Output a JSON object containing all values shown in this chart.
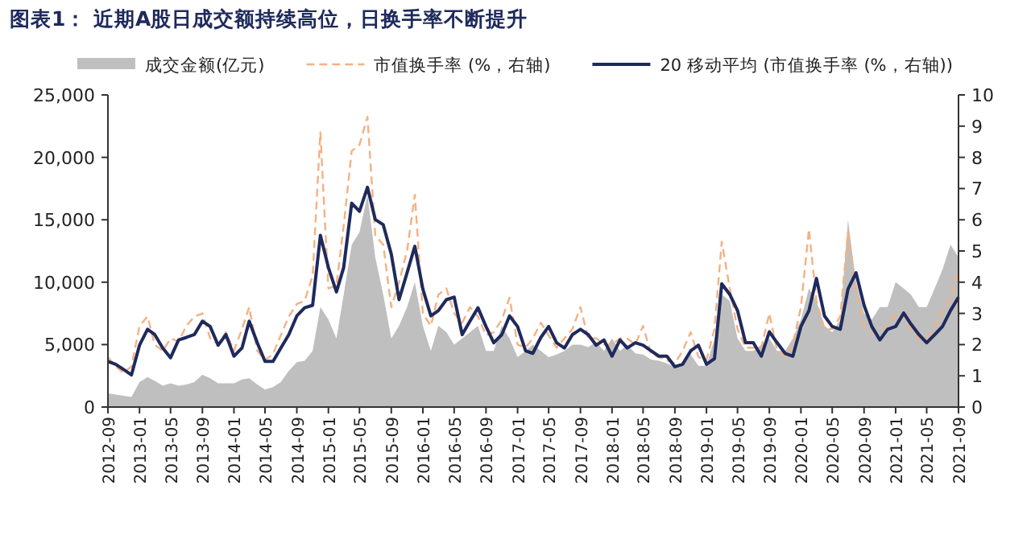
{
  "chart_data": {
    "type": "line",
    "title": "图表1：  近期A股日成交额持续高位，日换手率不断提升",
    "x": [
      "2012-09",
      "2012-10",
      "2012-11",
      "2012-12",
      "2013-01",
      "2013-02",
      "2013-03",
      "2013-04",
      "2013-05",
      "2013-06",
      "2013-07",
      "2013-08",
      "2013-09",
      "2013-10",
      "2013-11",
      "2013-12",
      "2014-01",
      "2014-02",
      "2014-03",
      "2014-04",
      "2014-05",
      "2014-06",
      "2014-07",
      "2014-08",
      "2014-09",
      "2014-10",
      "2014-11",
      "2014-12",
      "2015-01",
      "2015-02",
      "2015-03",
      "2015-04",
      "2015-05",
      "2015-06",
      "2015-07",
      "2015-08",
      "2015-09",
      "2015-10",
      "2015-11",
      "2015-12",
      "2016-01",
      "2016-02",
      "2016-03",
      "2016-04",
      "2016-05",
      "2016-06",
      "2016-07",
      "2016-08",
      "2016-09",
      "2016-10",
      "2016-11",
      "2016-12",
      "2017-01",
      "2017-02",
      "2017-03",
      "2017-04",
      "2017-05",
      "2017-06",
      "2017-07",
      "2017-08",
      "2017-09",
      "2017-10",
      "2017-11",
      "2017-12",
      "2018-01",
      "2018-02",
      "2018-03",
      "2018-04",
      "2018-05",
      "2018-06",
      "2018-07",
      "2018-08",
      "2018-09",
      "2018-10",
      "2018-11",
      "2018-12",
      "2019-01",
      "2019-02",
      "2019-03",
      "2019-04",
      "2019-05",
      "2019-06",
      "2019-07",
      "2019-08",
      "2019-09",
      "2019-10",
      "2019-11",
      "2019-12",
      "2020-01",
      "2020-02",
      "2020-03",
      "2020-04",
      "2020-05",
      "2020-06",
      "2020-07",
      "2020-08",
      "2020-09",
      "2020-10",
      "2020-11",
      "2020-12",
      "2021-01",
      "2021-02",
      "2021-03",
      "2021-04",
      "2021-05",
      "2021-06",
      "2021-07",
      "2021-08",
      "2021-09"
    ],
    "series": [
      {
        "name": "成交金额(亿元)",
        "type": "area",
        "color": "#bfbfbf",
        "values": [
          1100,
          1000,
          900,
          800,
          2000,
          2400,
          2100,
          1700,
          1900,
          1700,
          1800,
          2000,
          2600,
          2300,
          1900,
          1900,
          1900,
          2200,
          2300,
          1800,
          1400,
          1600,
          2000,
          2900,
          3600,
          3700,
          4500,
          8000,
          7000,
          5500,
          9000,
          13000,
          14000,
          17000,
          12000,
          9000,
          5500,
          6500,
          8000,
          10000,
          6500,
          4500,
          6500,
          6000,
          5000,
          5500,
          6000,
          6500,
          4500,
          4500,
          6500,
          5500,
          4000,
          4500,
          5000,
          4500,
          4000,
          4200,
          4500,
          5000,
          5000,
          4800,
          5200,
          4500,
          5500,
          4500,
          5000,
          4300,
          4200,
          3800,
          3700,
          3500,
          3200,
          3400,
          4200,
          3300,
          3300,
          5500,
          9000,
          8500,
          5500,
          4500,
          4500,
          5000,
          5500,
          4500,
          4500,
          5500,
          7000,
          9500,
          8500,
          6500,
          6000,
          7000,
          15000,
          10000,
          7500,
          7000,
          8000,
          8000,
          10000,
          9500,
          9000,
          8000,
          8000,
          9500,
          11000,
          13000,
          12000
        ]
      },
      {
        "name": "市值换手率 (%，右轴)",
        "axis": "y2",
        "line_style": "dashed",
        "color": "#f4b183",
        "values": [
          1.6,
          1.3,
          1.1,
          1.3,
          2.6,
          2.9,
          2.0,
          1.8,
          2.2,
          2.1,
          2.6,
          2.9,
          3.0,
          2.2,
          2.0,
          2.4,
          1.8,
          2.5,
          3.2,
          1.8,
          1.5,
          1.7,
          2.3,
          2.9,
          3.3,
          3.4,
          4.2,
          8.8,
          3.8,
          3.9,
          5.8,
          8.2,
          8.4,
          9.3,
          5.5,
          5.2,
          3.2,
          4.0,
          5.0,
          6.8,
          3.0,
          2.6,
          3.6,
          3.8,
          3.0,
          2.7,
          3.2,
          2.9,
          2.3,
          2.4,
          2.8,
          3.5,
          2.0,
          1.9,
          2.2,
          2.7,
          2.3,
          1.9,
          2.2,
          2.5,
          3.2,
          2.2,
          2.2,
          2.0,
          2.0,
          2.2,
          2.2,
          2.0,
          2.6,
          1.7,
          1.6,
          1.5,
          1.4,
          1.8,
          2.4,
          1.6,
          1.5,
          2.5,
          5.3,
          3.8,
          2.5,
          1.9,
          1.9,
          1.9,
          3.0,
          1.8,
          1.6,
          2.0,
          3.2,
          5.7,
          3.4,
          2.5,
          2.5,
          2.9,
          5.6,
          3.7,
          2.6,
          2.4,
          2.5,
          2.6,
          3.0,
          2.9,
          2.5,
          2.2,
          2.2,
          2.6,
          3.0,
          3.5,
          4.4
        ]
      },
      {
        "name": "20 移动平均 (市值换手率 (%，右轴))",
        "axis": "y2",
        "line_style": "solid",
        "color": "#1f2a5c",
        "values": [
          1.46,
          1.37,
          1.2,
          1.03,
          1.98,
          2.49,
          2.32,
          1.89,
          1.58,
          2.15,
          2.23,
          2.32,
          2.75,
          2.58,
          1.98,
          2.32,
          1.63,
          1.89,
          2.75,
          2.06,
          1.46,
          1.46,
          1.89,
          2.32,
          2.92,
          3.18,
          3.26,
          5.5,
          4.47,
          3.69,
          4.47,
          6.53,
          6.27,
          7.04,
          6.01,
          5.84,
          4.9,
          3.44,
          4.3,
          5.15,
          3.78,
          2.92,
          3.09,
          3.44,
          3.52,
          2.32,
          2.75,
          3.18,
          2.58,
          2.06,
          2.32,
          2.92,
          2.58,
          1.8,
          1.72,
          2.23,
          2.58,
          2.06,
          1.89,
          2.32,
          2.49,
          2.32,
          1.98,
          2.15,
          1.63,
          2.15,
          1.89,
          2.06,
          1.98,
          1.8,
          1.63,
          1.63,
          1.29,
          1.37,
          1.8,
          1.98,
          1.37,
          1.55,
          3.95,
          3.61,
          3.09,
          2.06,
          2.06,
          1.63,
          2.41,
          2.06,
          1.72,
          1.63,
          2.58,
          3.09,
          4.12,
          2.92,
          2.58,
          2.49,
          3.78,
          4.3,
          3.26,
          2.58,
          2.15,
          2.49,
          2.58,
          3.01,
          2.66,
          2.32,
          2.06,
          2.32,
          2.58,
          3.09,
          3.52
        ]
      }
    ],
    "xlim": [
      "2012-09",
      "2021-09"
    ],
    "xticks": [
      "2012-09",
      "2013-01",
      "2013-05",
      "2013-09",
      "2014-01",
      "2014-05",
      "2014-09",
      "2015-01",
      "2015-05",
      "2015-09",
      "2016-01",
      "2016-05",
      "2016-09",
      "2017-01",
      "2017-05",
      "2017-09",
      "2018-01",
      "2018-05",
      "2018-09",
      "2019-01",
      "2019-05",
      "2019-09",
      "2020-01",
      "2020-05",
      "2020-09",
      "2021-01",
      "2021-05",
      "2021-09"
    ],
    "ylim": [
      0,
      25000
    ],
    "yticks": [
      0,
      {
        "value": 5000,
        "label": "5,000"
      },
      {
        "value": 10000,
        "label": "10,000"
      },
      {
        "value": 15000,
        "label": "15,000"
      },
      {
        "value": 20000,
        "label": "20,000"
      },
      {
        "value": 25000,
        "label": "25,000"
      }
    ],
    "y2lim": [
      0,
      10
    ],
    "y2ticks": [
      0,
      1,
      2,
      3,
      4,
      5,
      6,
      7,
      8,
      9,
      10
    ],
    "legend": "top",
    "grid": false,
    "marker": "none"
  }
}
